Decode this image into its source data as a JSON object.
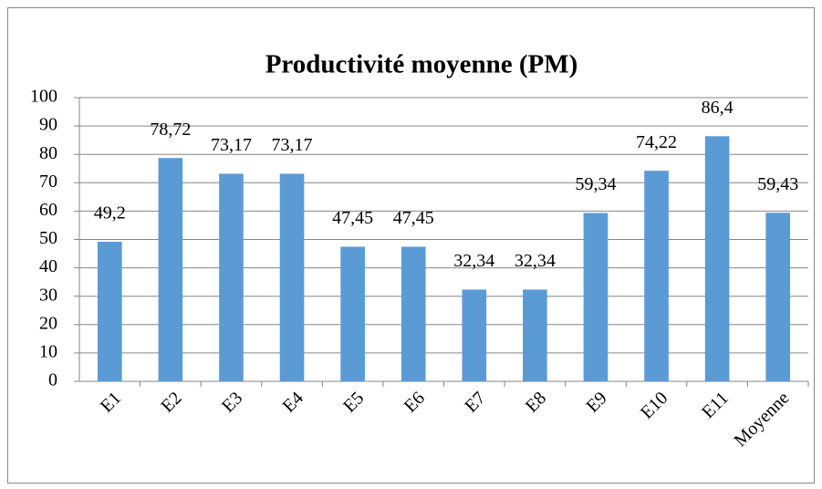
{
  "chart_data": {
    "type": "bar",
    "title": "Productivité moyenne (PM)",
    "categories": [
      "E1",
      "E2",
      "E3",
      "E4",
      "E5",
      "E6",
      "E7",
      "E8",
      "E9",
      "E10",
      "E11",
      "Moyenne"
    ],
    "values": [
      49.2,
      78.72,
      73.17,
      73.17,
      47.45,
      47.45,
      32.34,
      32.34,
      59.34,
      74.22,
      86.4,
      59.43
    ],
    "value_labels": [
      "49,2",
      "78,72",
      "73,17",
      "73,17",
      "47,45",
      "47,45",
      "32,34",
      "32,34",
      "59,34",
      "74,22",
      "86,4",
      "59,43"
    ],
    "color": "#5b9bd5",
    "ylim": [
      0,
      100
    ],
    "yticks": [
      0,
      10,
      20,
      30,
      40,
      50,
      60,
      70,
      80,
      90,
      100
    ],
    "grid": true
  }
}
